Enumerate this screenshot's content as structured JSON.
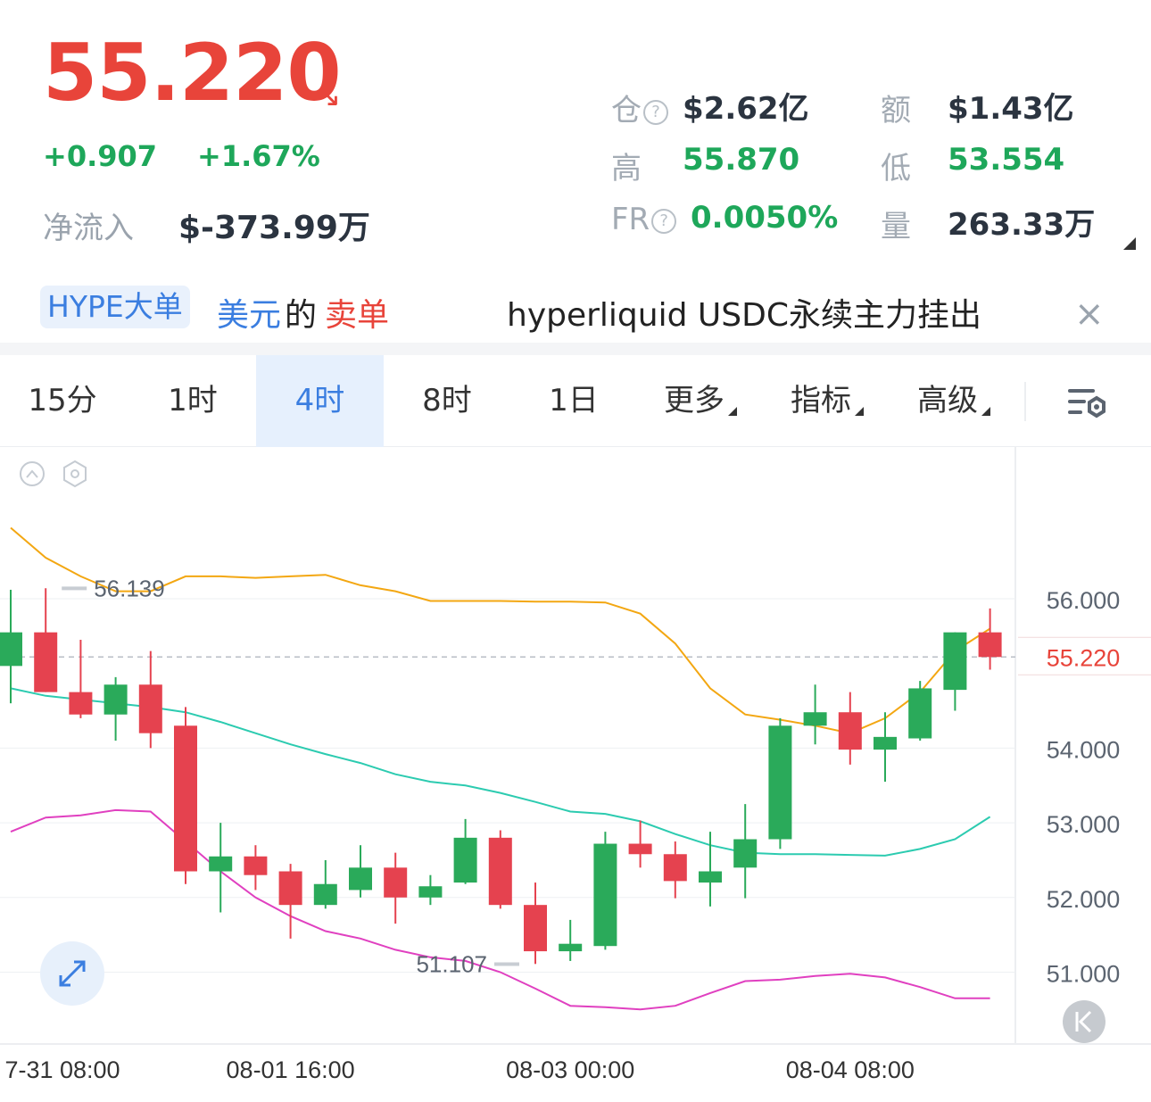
{
  "header": {
    "price": "55.220",
    "trend_arrow": "↘",
    "change": "+0.907",
    "change_pct": "+1.67%",
    "netflow_label": "净流入",
    "netflow_value": "$-373.99万"
  },
  "stats": {
    "oi_label": "仓",
    "oi_value": "$2.62亿",
    "turnover_label": "额",
    "turnover_value": "$1.43亿",
    "high_label": "高",
    "high_value": "55.870",
    "low_label": "低",
    "low_value": "53.554",
    "fr_label": "FR",
    "fr_value": "0.0050%",
    "volume_label": "量",
    "volume_value": "263.33万",
    "help_glyph": "?"
  },
  "ticker": {
    "tag": "HYPE大单",
    "word1": "美元",
    "word2": "的",
    "word3": "卖单",
    "headline": "hyperliquid USDC永续主力挂出",
    "close_glyph": "×"
  },
  "tabs": [
    {
      "label": "15分",
      "active": false
    },
    {
      "label": "1时",
      "active": false
    },
    {
      "label": "4时",
      "active": true
    },
    {
      "label": "8时",
      "active": false
    },
    {
      "label": "1日",
      "active": false
    },
    {
      "label": "更多",
      "active": false,
      "dropdown": true
    },
    {
      "label": "指标",
      "active": false,
      "dropdown": true
    },
    {
      "label": "高级",
      "active": false,
      "dropdown": true
    }
  ],
  "icons": {
    "settings": "chart-settings-icon",
    "collapse": "chevron-up-circle-icon",
    "hex": "hexagon-settings-icon",
    "expand": "expand-arrows-icon",
    "back": "jump-to-latest-icon"
  },
  "colors": {
    "up": "#1ea75a",
    "candle_up": "#2aaa5a",
    "down": "#e8443a",
    "candle_down": "#e5424f",
    "accent": "#3b7ee0",
    "boll_upper": "#f3a712",
    "boll_mid": "#2ccbb0",
    "boll_lower": "#e040c0"
  },
  "chart_data": {
    "type": "candlestick",
    "y_axis_ticks": [
      "56.000",
      "54.000",
      "53.000",
      "52.000",
      "51.000"
    ],
    "ylim": [
      50.0,
      57.0
    ],
    "current_price_label": "55.220",
    "current_price": 55.22,
    "max_marker": {
      "label": "56.139",
      "value": 56.139,
      "index": 1
    },
    "min_marker": {
      "label": "51.107",
      "value": 51.107,
      "index": 15
    },
    "x_tick_labels": [
      {
        "label": "7-31 08:00",
        "index": 0
      },
      {
        "label": "08-01 16:00",
        "index": 8
      },
      {
        "label": "08-03 00:00",
        "index": 16
      },
      {
        "label": "08-04 08:00",
        "index": 24
      }
    ],
    "candles": [
      {
        "o": 55.1,
        "h": 56.12,
        "l": 54.6,
        "c": 55.55
      },
      {
        "o": 55.55,
        "h": 56.14,
        "l": 54.75,
        "c": 54.75
      },
      {
        "o": 54.75,
        "h": 55.45,
        "l": 54.4,
        "c": 54.45
      },
      {
        "o": 54.45,
        "h": 54.95,
        "l": 54.1,
        "c": 54.85
      },
      {
        "o": 54.85,
        "h": 55.3,
        "l": 54.0,
        "c": 54.2
      },
      {
        "o": 54.3,
        "h": 54.55,
        "l": 52.18,
        "c": 52.35
      },
      {
        "o": 52.35,
        "h": 53.0,
        "l": 51.8,
        "c": 52.55
      },
      {
        "o": 52.55,
        "h": 52.7,
        "l": 52.1,
        "c": 52.3
      },
      {
        "o": 52.35,
        "h": 52.45,
        "l": 51.45,
        "c": 51.9
      },
      {
        "o": 51.9,
        "h": 52.5,
        "l": 51.85,
        "c": 52.18
      },
      {
        "o": 52.1,
        "h": 52.7,
        "l": 52.0,
        "c": 52.4
      },
      {
        "o": 52.4,
        "h": 52.6,
        "l": 51.65,
        "c": 52.0
      },
      {
        "o": 52.0,
        "h": 52.3,
        "l": 51.9,
        "c": 52.15
      },
      {
        "o": 52.2,
        "h": 53.05,
        "l": 52.18,
        "c": 52.8
      },
      {
        "o": 52.8,
        "h": 52.9,
        "l": 51.85,
        "c": 51.9
      },
      {
        "o": 51.9,
        "h": 52.2,
        "l": 51.11,
        "c": 51.28
      },
      {
        "o": 51.28,
        "h": 51.7,
        "l": 51.15,
        "c": 51.38
      },
      {
        "o": 51.35,
        "h": 52.88,
        "l": 51.3,
        "c": 52.72
      },
      {
        "o": 52.72,
        "h": 53.03,
        "l": 52.4,
        "c": 52.58
      },
      {
        "o": 52.58,
        "h": 52.75,
        "l": 51.99,
        "c": 52.22
      },
      {
        "o": 52.2,
        "h": 52.88,
        "l": 51.88,
        "c": 52.35
      },
      {
        "o": 52.4,
        "h": 53.25,
        "l": 51.99,
        "c": 52.78
      },
      {
        "o": 52.78,
        "h": 54.4,
        "l": 52.65,
        "c": 54.3
      },
      {
        "o": 54.3,
        "h": 54.85,
        "l": 54.05,
        "c": 54.48
      },
      {
        "o": 54.48,
        "h": 54.75,
        "l": 53.78,
        "c": 53.98
      },
      {
        "o": 53.98,
        "h": 54.48,
        "l": 53.55,
        "c": 54.15
      },
      {
        "o": 54.13,
        "h": 54.9,
        "l": 54.1,
        "c": 54.8
      },
      {
        "o": 54.78,
        "h": 55.55,
        "l": 54.5,
        "c": 55.55
      },
      {
        "o": 55.55,
        "h": 55.87,
        "l": 55.05,
        "c": 55.22
      }
    ],
    "boll_upper": [
      56.95,
      56.55,
      56.3,
      56.1,
      56.1,
      56.3,
      56.3,
      56.28,
      56.3,
      56.32,
      56.18,
      56.1,
      55.97,
      55.97,
      55.97,
      55.96,
      55.96,
      55.95,
      55.8,
      55.4,
      54.8,
      54.45,
      54.38,
      54.3,
      54.2,
      54.4,
      54.75,
      55.3,
      55.6
    ],
    "boll_mid": [
      54.8,
      54.7,
      54.65,
      54.6,
      54.55,
      54.48,
      54.35,
      54.2,
      54.05,
      53.92,
      53.8,
      53.65,
      53.55,
      53.5,
      53.4,
      53.28,
      53.15,
      53.12,
      53.02,
      52.85,
      52.7,
      52.6,
      52.58,
      52.58,
      52.57,
      52.56,
      52.65,
      52.78,
      53.08
    ],
    "boll_lower": [
      52.88,
      53.07,
      53.1,
      53.17,
      53.15,
      52.75,
      52.35,
      52.0,
      51.75,
      51.55,
      51.45,
      51.3,
      51.2,
      51.15,
      51.0,
      50.78,
      50.55,
      50.53,
      50.5,
      50.55,
      50.72,
      50.88,
      50.9,
      50.95,
      50.98,
      50.93,
      50.8,
      50.65,
      50.65
    ]
  }
}
